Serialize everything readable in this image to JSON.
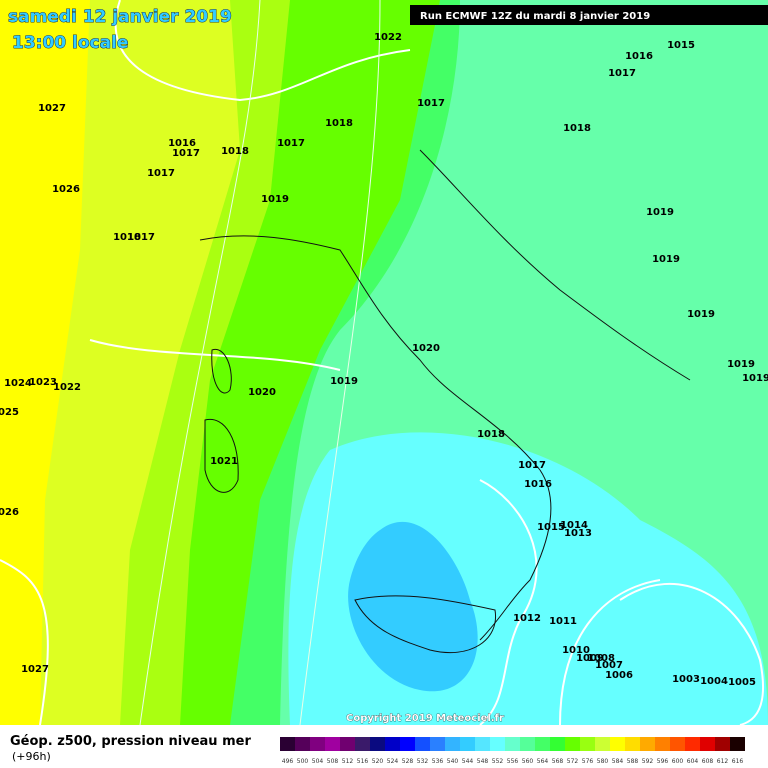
{
  "header": {
    "date": "samedi 12 janvier 2019",
    "time": "13:00 locale",
    "run": "Run ECMWF 12Z du mardi 8 janvier 2019"
  },
  "isobar_labels": [
    1022,
    1016,
    1015,
    1017,
    1027,
    1017,
    1018,
    1018,
    1016,
    1017,
    1018,
    1017,
    1017,
    1026,
    1019,
    1019,
    1018,
    1017,
    1019,
    1019,
    1020,
    1019,
    1019,
    1024,
    1023,
    1022,
    1019,
    1020,
    1025,
    1018,
    1021,
    1017,
    1016,
    1026,
    1015,
    1014,
    1013,
    1012,
    1011,
    1010,
    1009,
    1008,
    1007,
    1006,
    1003,
    1004,
    1005,
    1027
  ],
  "copyright": "Copyright 2019 Meteociel.fr",
  "footer": {
    "title": "Géop. z500, pression niveau mer",
    "lead": "(+96h)"
  },
  "legend": {
    "values": [
      496,
      500,
      504,
      508,
      512,
      516,
      520,
      524,
      528,
      532,
      536,
      540,
      544,
      548,
      552,
      556,
      560,
      564,
      568,
      572,
      576,
      580,
      584,
      588,
      592,
      596,
      600,
      604,
      608,
      612,
      616
    ],
    "colors": [
      "#2a0033",
      "#55005a",
      "#800080",
      "#a000a0",
      "#700070",
      "#3a1a6a",
      "#0a0a80",
      "#0000c8",
      "#0000ff",
      "#1450ff",
      "#2a80ff",
      "#33b4ff",
      "#33ccff",
      "#55e6ff",
      "#66ffff",
      "#66ffcc",
      "#55ff99",
      "#44ff66",
      "#33ff33",
      "#66ff00",
      "#99ff11",
      "#ccff33",
      "#ffff00",
      "#ffdd00",
      "#ffaa00",
      "#ff8000",
      "#ff5500",
      "#ff2a00",
      "#e00000",
      "#a00000",
      "#1a0000"
    ]
  }
}
